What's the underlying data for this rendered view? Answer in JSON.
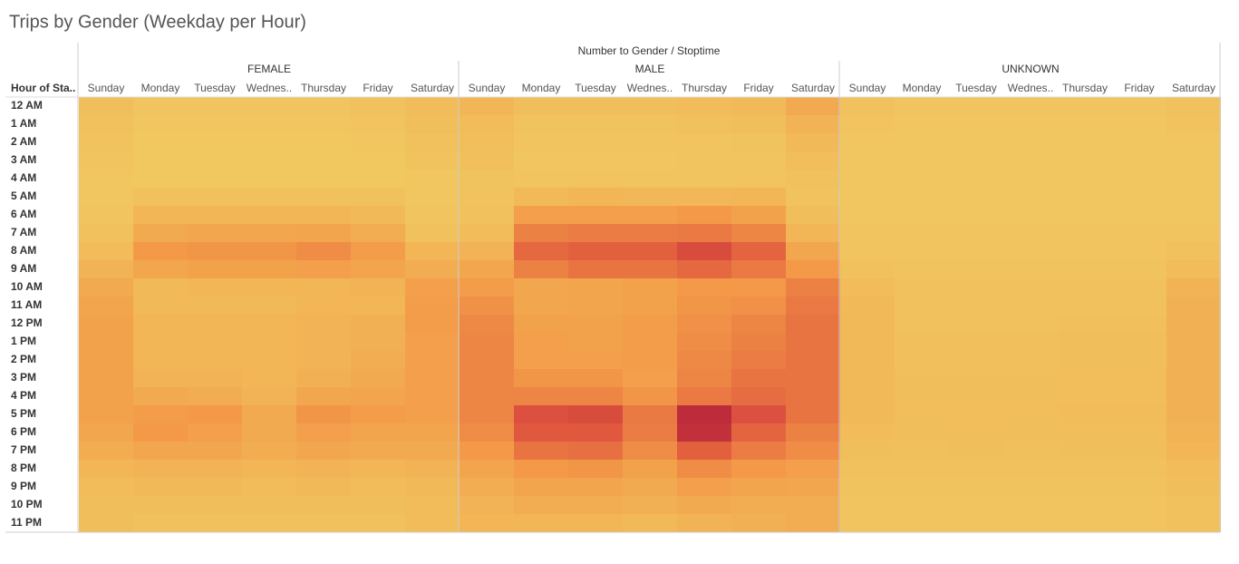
{
  "chart_data": {
    "type": "heatmap",
    "title": "Trips by Gender (Weekday per Hour)",
    "column_title": "Number to Gender / Stoptime",
    "row_title": "Hour of Sta..",
    "rows": [
      "12 AM",
      "1 AM",
      "2 AM",
      "3 AM",
      "4 AM",
      "5 AM",
      "6 AM",
      "7 AM",
      "8 AM",
      "9 AM",
      "10 AM",
      "11 AM",
      "12 PM",
      "1 PM",
      "2 PM",
      "3 PM",
      "4 PM",
      "5 PM",
      "6 PM",
      "7 PM",
      "8 PM",
      "9 PM",
      "10 PM",
      "11 PM"
    ],
    "clim": [
      0,
      100
    ],
    "colors": [
      "#f1ca62",
      "#f39a48",
      "#e0573e",
      "#ab1439"
    ],
    "series": [
      {
        "name": "FEMALE",
        "categories": [
          "Sunday",
          "Monday",
          "Tuesday",
          "Wednes..",
          "Thursday",
          "Friday",
          "Saturday"
        ],
        "values": [
          [
            8,
            4,
            4,
            4,
            4,
            6,
            10
          ],
          [
            6,
            3,
            3,
            3,
            3,
            4,
            8
          ],
          [
            5,
            2,
            2,
            2,
            2,
            3,
            6
          ],
          [
            4,
            2,
            2,
            2,
            2,
            2,
            5
          ],
          [
            3,
            2,
            2,
            2,
            2,
            2,
            3
          ],
          [
            3,
            6,
            6,
            6,
            6,
            6,
            3
          ],
          [
            4,
            14,
            14,
            14,
            14,
            12,
            4
          ],
          [
            6,
            22,
            24,
            24,
            26,
            20,
            6
          ],
          [
            10,
            34,
            36,
            36,
            40,
            32,
            14
          ],
          [
            16,
            24,
            28,
            28,
            30,
            26,
            20
          ],
          [
            22,
            12,
            14,
            14,
            14,
            16,
            30
          ],
          [
            26,
            12,
            12,
            12,
            14,
            14,
            32
          ],
          [
            28,
            14,
            14,
            14,
            16,
            18,
            32
          ],
          [
            28,
            14,
            14,
            14,
            16,
            18,
            30
          ],
          [
            28,
            14,
            14,
            14,
            16,
            20,
            30
          ],
          [
            28,
            16,
            16,
            14,
            18,
            22,
            30
          ],
          [
            28,
            22,
            20,
            16,
            24,
            26,
            30
          ],
          [
            28,
            32,
            34,
            22,
            36,
            32,
            30
          ],
          [
            24,
            34,
            30,
            22,
            30,
            26,
            26
          ],
          [
            20,
            24,
            24,
            20,
            24,
            22,
            22
          ],
          [
            14,
            16,
            16,
            14,
            16,
            14,
            16
          ],
          [
            10,
            12,
            12,
            10,
            12,
            10,
            12
          ],
          [
            8,
            8,
            8,
            8,
            8,
            8,
            10
          ],
          [
            8,
            6,
            6,
            6,
            6,
            6,
            10
          ]
        ]
      },
      {
        "name": "MALE",
        "categories": [
          "Sunday",
          "Monday",
          "Tuesday",
          "Wednes..",
          "Thursday",
          "Friday",
          "Saturday"
        ],
        "values": [
          [
            14,
            8,
            8,
            8,
            10,
            12,
            22
          ],
          [
            10,
            5,
            5,
            5,
            6,
            8,
            16
          ],
          [
            9,
            4,
            4,
            4,
            4,
            5,
            12
          ],
          [
            7,
            3,
            3,
            3,
            4,
            4,
            9
          ],
          [
            5,
            4,
            4,
            4,
            4,
            4,
            6
          ],
          [
            5,
            12,
            14,
            13,
            13,
            14,
            5
          ],
          [
            6,
            30,
            30,
            30,
            34,
            28,
            8
          ],
          [
            10,
            46,
            48,
            48,
            50,
            44,
            14
          ],
          [
            16,
            58,
            62,
            62,
            72,
            60,
            24
          ],
          [
            24,
            46,
            52,
            52,
            58,
            50,
            34
          ],
          [
            32,
            24,
            26,
            28,
            34,
            34,
            46
          ],
          [
            38,
            24,
            26,
            28,
            36,
            38,
            50
          ],
          [
            42,
            28,
            28,
            32,
            38,
            44,
            52
          ],
          [
            44,
            30,
            28,
            32,
            40,
            46,
            52
          ],
          [
            44,
            30,
            30,
            32,
            42,
            48,
            52
          ],
          [
            44,
            36,
            36,
            30,
            44,
            52,
            52
          ],
          [
            44,
            44,
            44,
            36,
            50,
            56,
            52
          ],
          [
            44,
            70,
            72,
            50,
            88,
            70,
            52
          ],
          [
            40,
            66,
            66,
            48,
            86,
            60,
            46
          ],
          [
            34,
            52,
            54,
            40,
            62,
            48,
            40
          ],
          [
            26,
            34,
            36,
            28,
            40,
            34,
            30
          ],
          [
            20,
            26,
            26,
            22,
            30,
            26,
            24
          ],
          [
            16,
            20,
            20,
            18,
            22,
            20,
            20
          ],
          [
            14,
            14,
            14,
            12,
            16,
            18,
            20
          ]
        ]
      },
      {
        "name": "UNKNOWN",
        "categories": [
          "Sunday",
          "Monday",
          "Tuesday",
          "Wednes..",
          "Thursday",
          "Friday",
          "Saturday"
        ],
        "values": [
          [
            6,
            4,
            4,
            4,
            4,
            4,
            6
          ],
          [
            4,
            3,
            3,
            3,
            3,
            3,
            5
          ],
          [
            3,
            3,
            3,
            3,
            3,
            3,
            3
          ],
          [
            3,
            3,
            3,
            3,
            3,
            3,
            3
          ],
          [
            3,
            3,
            3,
            3,
            3,
            3,
            3
          ],
          [
            3,
            3,
            3,
            3,
            3,
            3,
            3
          ],
          [
            3,
            3,
            3,
            3,
            3,
            3,
            3
          ],
          [
            4,
            4,
            4,
            4,
            4,
            4,
            4
          ],
          [
            4,
            4,
            4,
            4,
            4,
            4,
            6
          ],
          [
            6,
            5,
            5,
            5,
            5,
            5,
            10
          ],
          [
            10,
            6,
            6,
            6,
            6,
            6,
            16
          ],
          [
            12,
            6,
            6,
            6,
            6,
            6,
            18
          ],
          [
            12,
            6,
            6,
            6,
            7,
            7,
            18
          ],
          [
            12,
            7,
            7,
            7,
            8,
            8,
            18
          ],
          [
            12,
            7,
            7,
            7,
            8,
            8,
            18
          ],
          [
            12,
            8,
            8,
            8,
            9,
            9,
            18
          ],
          [
            12,
            8,
            8,
            8,
            9,
            9,
            18
          ],
          [
            12,
            9,
            9,
            9,
            10,
            10,
            18
          ],
          [
            10,
            8,
            9,
            8,
            9,
            9,
            16
          ],
          [
            8,
            7,
            8,
            7,
            8,
            8,
            14
          ],
          [
            6,
            6,
            6,
            6,
            6,
            6,
            10
          ],
          [
            5,
            5,
            5,
            5,
            5,
            5,
            8
          ],
          [
            4,
            4,
            4,
            4,
            4,
            4,
            6
          ],
          [
            4,
            4,
            4,
            4,
            4,
            4,
            6
          ]
        ]
      }
    ]
  }
}
